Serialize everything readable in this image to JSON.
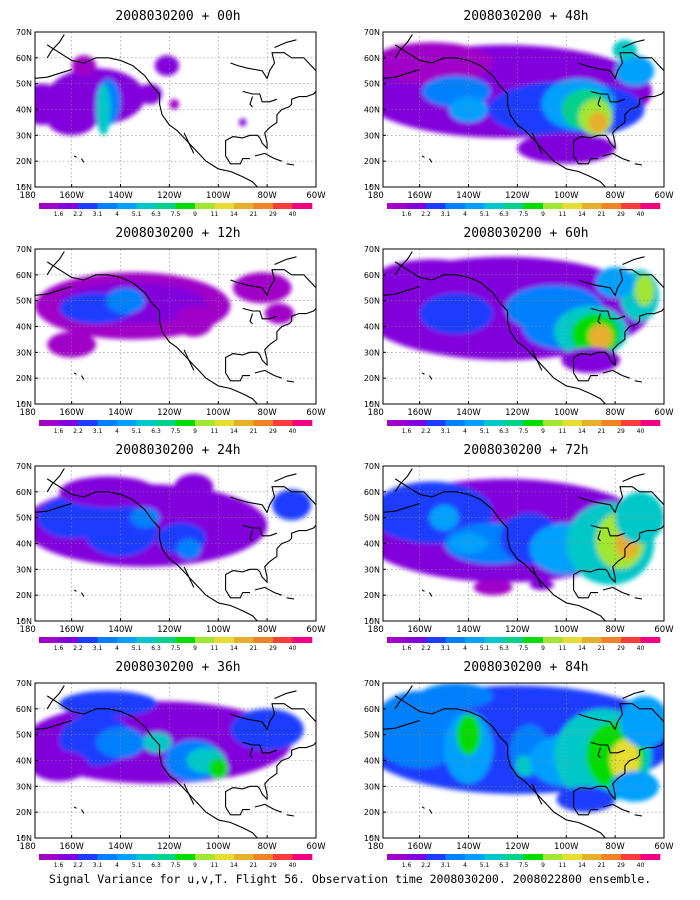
{
  "map_axes": {
    "lat_labels": [
      "70N",
      "60N",
      "50N",
      "40N",
      "30N",
      "20N",
      "10N"
    ],
    "lon_labels": [
      "180",
      "160W",
      "140W",
      "120W",
      "100W",
      "80W",
      "60W"
    ]
  },
  "colorbar": {
    "labels": [
      "1.6",
      "2.2",
      "3.1",
      "4",
      "5.1",
      "6.3",
      "7.5",
      "9",
      "11",
      "14",
      "21",
      "29",
      "40"
    ],
    "colors": [
      "#a000c8",
      "#8200dc",
      "#1e3cff",
      "#0080ff",
      "#00a0ff",
      "#00c8c8",
      "#00d28c",
      "#00dc00",
      "#a0e632",
      "#e6dc32",
      "#e6af2d",
      "#f08228",
      "#fa3c3c",
      "#f00082"
    ]
  },
  "panels": [
    {
      "id": "00h",
      "title": "2008030200 + 00h"
    },
    {
      "id": "48h",
      "title": "2008030200 + 48h"
    },
    {
      "id": "12h",
      "title": "2008030200 + 12h"
    },
    {
      "id": "60h",
      "title": "2008030200 + 60h"
    },
    {
      "id": "24h",
      "title": "2008030200 + 24h"
    },
    {
      "id": "72h",
      "title": "2008030200 + 72h"
    },
    {
      "id": "36h",
      "title": "2008030200 + 36h"
    },
    {
      "id": "84h",
      "title": "2008030200 + 84h"
    }
  ],
  "footer": "Signal Variance for u,v,T. Flight 56. Observation time 2008030200. 2008022800 ensemble."
}
